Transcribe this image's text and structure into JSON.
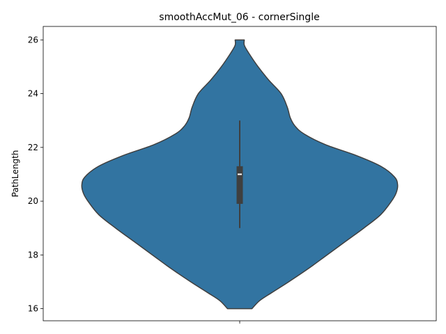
{
  "chart_data": {
    "type": "violin",
    "title": "smoothAccMut_06 - cornerSingle",
    "xlabel": "",
    "ylabel": "PathLength",
    "ylim": [
      15.55,
      26.5
    ],
    "yticks": [
      "16",
      "18",
      "20",
      "22",
      "24",
      "26"
    ],
    "ytick_values": [
      16,
      18,
      20,
      22,
      24,
      26
    ],
    "grid": false,
    "legend": "none",
    "color": "#3274a1",
    "edge_color": "#3f3f3f",
    "violin": {
      "min": 16,
      "max": 26,
      "density_profile": [
        {
          "y": 16.0,
          "halfwidth": 0.08
        },
        {
          "y": 16.3,
          "halfwidth": 0.13
        },
        {
          "y": 16.6,
          "halfwidth": 0.21
        },
        {
          "y": 17.0,
          "halfwidth": 0.32
        },
        {
          "y": 17.5,
          "halfwidth": 0.45
        },
        {
          "y": 18.0,
          "halfwidth": 0.57
        },
        {
          "y": 18.5,
          "halfwidth": 0.69
        },
        {
          "y": 19.0,
          "halfwidth": 0.81
        },
        {
          "y": 19.5,
          "halfwidth": 0.92
        },
        {
          "y": 20.0,
          "halfwidth": 0.99
        },
        {
          "y": 20.3,
          "halfwidth": 1.02
        },
        {
          "y": 20.6,
          "halfwidth": 1.03
        },
        {
          "y": 20.9,
          "halfwidth": 1.01
        },
        {
          "y": 21.3,
          "halfwidth": 0.92
        },
        {
          "y": 21.7,
          "halfwidth": 0.76
        },
        {
          "y": 22.1,
          "halfwidth": 0.56
        },
        {
          "y": 22.5,
          "halfwidth": 0.42
        },
        {
          "y": 22.8,
          "halfwidth": 0.36
        },
        {
          "y": 23.1,
          "halfwidth": 0.33
        },
        {
          "y": 23.5,
          "halfwidth": 0.31
        },
        {
          "y": 24.0,
          "halfwidth": 0.27
        },
        {
          "y": 24.5,
          "halfwidth": 0.19
        },
        {
          "y": 25.0,
          "halfwidth": 0.12
        },
        {
          "y": 25.5,
          "halfwidth": 0.06
        },
        {
          "y": 25.8,
          "halfwidth": 0.03
        },
        {
          "y": 26.0,
          "halfwidth": 0.03
        }
      ],
      "whisker_low": 19,
      "whisker_high": 23,
      "q1": 19.9,
      "q3": 21.3,
      "median": 21
    }
  }
}
